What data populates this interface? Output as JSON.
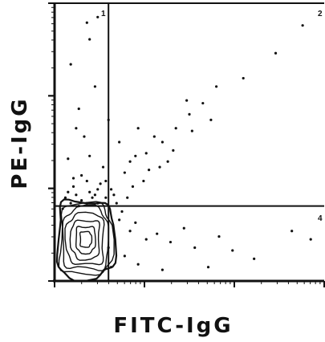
{
  "chart_data": {
    "type": "scatter",
    "xlabel": "FITC-IgG",
    "ylabel": "PE-IgG",
    "xlim": [
      0,
      1
    ],
    "ylim": [
      0,
      1
    ],
    "x_scale": "log",
    "y_scale": "log",
    "grid": false,
    "quadrant_gates": {
      "x": 0.2,
      "y": 0.27
    },
    "quadrant_labels": {
      "upper_left": "1",
      "upper_right": "2",
      "lower_right": "4"
    },
    "contour_region": {
      "x": [
        0.01,
        0.22
      ],
      "y": [
        0.01,
        0.29
      ]
    },
    "series": [
      {
        "values": [
          [
            0.12,
            0.93
          ],
          [
            0.13,
            0.87
          ],
          [
            0.16,
            0.95
          ],
          [
            0.06,
            0.78
          ],
          [
            0.09,
            0.62
          ],
          [
            0.15,
            0.7
          ],
          [
            0.08,
            0.55
          ],
          [
            0.2,
            0.58
          ],
          [
            0.24,
            0.5
          ],
          [
            0.13,
            0.45
          ],
          [
            0.28,
            0.43
          ],
          [
            0.34,
            0.46
          ],
          [
            0.37,
            0.52
          ],
          [
            0.4,
            0.5
          ],
          [
            0.45,
            0.55
          ],
          [
            0.5,
            0.6
          ],
          [
            0.55,
            0.64
          ],
          [
            0.6,
            0.7
          ],
          [
            0.7,
            0.73
          ],
          [
            0.82,
            0.82
          ],
          [
            0.92,
            0.92
          ],
          [
            0.49,
            0.65
          ],
          [
            0.58,
            0.58
          ],
          [
            0.31,
            0.55
          ],
          [
            0.44,
            0.47
          ],
          [
            0.33,
            0.36
          ],
          [
            0.26,
            0.39
          ],
          [
            0.39,
            0.41
          ],
          [
            0.3,
            0.45
          ],
          [
            0.42,
            0.43
          ],
          [
            0.29,
            0.34
          ],
          [
            0.35,
            0.4
          ],
          [
            0.51,
            0.54
          ],
          [
            0.1,
            0.38
          ],
          [
            0.05,
            0.44
          ],
          [
            0.11,
            0.52
          ],
          [
            0.07,
            0.34
          ],
          [
            0.16,
            0.33
          ],
          [
            0.12,
            0.36
          ],
          [
            0.18,
            0.41
          ],
          [
            0.14,
            0.3
          ],
          [
            0.04,
            0.3
          ],
          [
            0.06,
            0.28
          ],
          [
            0.08,
            0.31
          ],
          [
            0.1,
            0.29
          ],
          [
            0.13,
            0.32
          ],
          [
            0.16,
            0.28
          ],
          [
            0.03,
            0.26
          ],
          [
            0.09,
            0.27
          ],
          [
            0.12,
            0.28
          ],
          [
            0.15,
            0.31
          ],
          [
            0.19,
            0.3
          ],
          [
            0.05,
            0.32
          ],
          [
            0.07,
            0.37
          ],
          [
            0.17,
            0.35
          ],
          [
            0.22,
            0.31
          ],
          [
            0.23,
            0.28
          ],
          [
            0.27,
            0.3
          ],
          [
            0.21,
            0.33
          ],
          [
            0.19,
            0.36
          ],
          [
            0.24,
            0.22
          ],
          [
            0.28,
            0.18
          ],
          [
            0.3,
            0.21
          ],
          [
            0.34,
            0.15
          ],
          [
            0.38,
            0.17
          ],
          [
            0.43,
            0.14
          ],
          [
            0.48,
            0.19
          ],
          [
            0.52,
            0.12
          ],
          [
            0.61,
            0.16
          ],
          [
            0.66,
            0.11
          ],
          [
            0.74,
            0.08
          ],
          [
            0.88,
            0.18
          ],
          [
            0.95,
            0.15
          ],
          [
            0.26,
            0.09
          ],
          [
            0.31,
            0.06
          ],
          [
            0.4,
            0.04
          ],
          [
            0.57,
            0.05
          ],
          [
            0.25,
            0.25
          ],
          [
            0.2,
            0.12
          ],
          [
            0.21,
            0.05
          ]
        ]
      }
    ]
  }
}
